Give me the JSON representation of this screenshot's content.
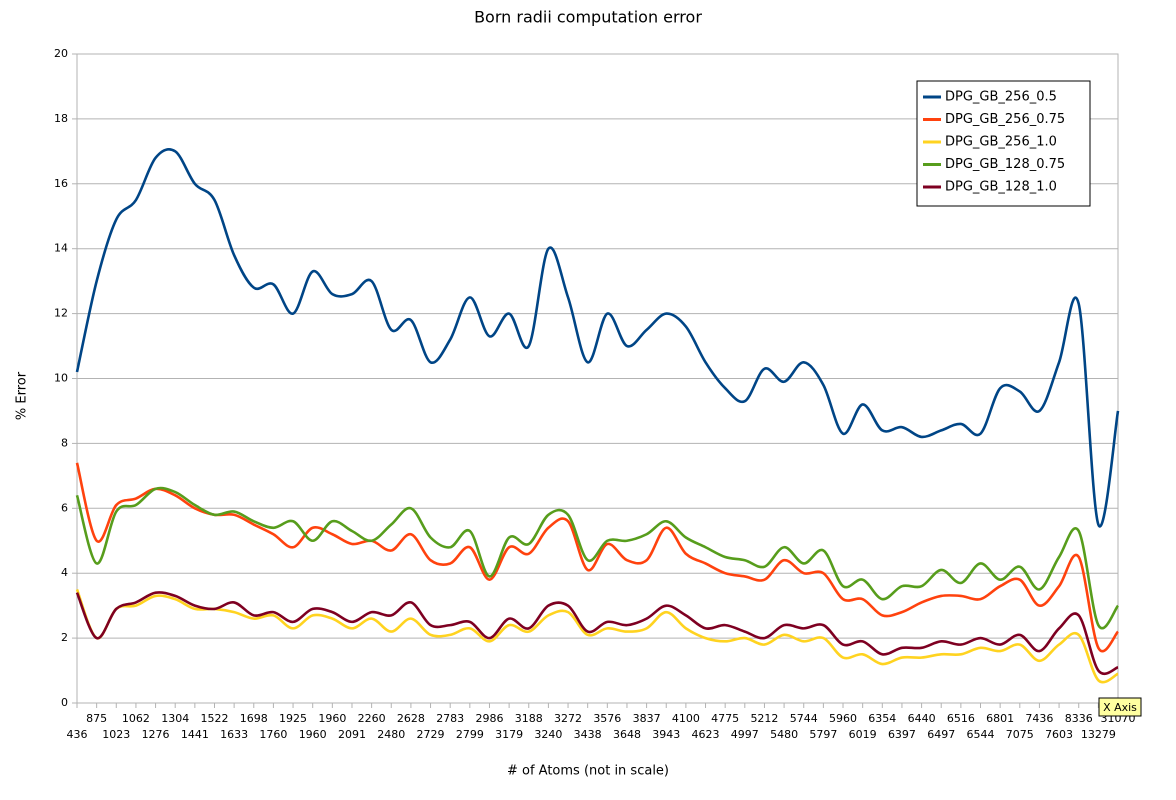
{
  "chart_data": {
    "type": "line",
    "title": "Born radii computation error",
    "x_label": "# of Atoms (not in scale)",
    "y_label": "% Error",
    "tooltip": "X Axis",
    "categories": [
      "436",
      "875",
      "1023",
      "1062",
      "1276",
      "1304",
      "1441",
      "1522",
      "1633",
      "1698",
      "1760",
      "1925",
      "1960",
      "1960",
      "2091",
      "2260",
      "2480",
      "2628",
      "2729",
      "2783",
      "2799",
      "2986",
      "3179",
      "3188",
      "3240",
      "3272",
      "3438",
      "3576",
      "3648",
      "3837",
      "3943",
      "4100",
      "4623",
      "4775",
      "4997",
      "5212",
      "5480",
      "5744",
      "5797",
      "5960",
      "6019",
      "6354",
      "6397",
      "6440",
      "6497",
      "6516",
      "6544",
      "6801",
      "7075",
      "7436",
      "7603",
      "8336",
      "13279",
      "31070"
    ],
    "ylim": [
      0,
      20
    ],
    "yticks": [
      0,
      2,
      4,
      6,
      8,
      10,
      12,
      14,
      16,
      18,
      20
    ],
    "grid": true,
    "smooth": true,
    "legend": "upper right",
    "series": [
      {
        "name": "DPG_GB_256_0.5",
        "color": "#004586",
        "values": [
          10.2,
          13.0,
          14.9,
          15.5,
          16.8,
          17.0,
          16.0,
          15.5,
          13.8,
          12.8,
          12.9,
          12.0,
          13.3,
          12.6,
          12.6,
          13.0,
          11.5,
          11.8,
          10.5,
          11.2,
          12.5,
          11.3,
          12.0,
          11.0,
          14.0,
          12.5,
          10.5,
          12.0,
          11.0,
          11.5,
          12.0,
          11.6,
          10.5,
          9.7,
          9.3,
          10.3,
          9.9,
          10.5,
          9.8,
          8.3,
          9.2,
          8.4,
          8.5,
          8.2,
          8.4,
          8.6,
          8.3,
          9.7,
          9.6,
          9.0,
          10.5,
          12.3,
          5.5,
          9.0
        ]
      },
      {
        "name": "DPG_GB_256_0.75",
        "color": "#ff420e",
        "values": [
          7.4,
          5.0,
          6.1,
          6.3,
          6.6,
          6.4,
          6.0,
          5.8,
          5.8,
          5.5,
          5.2,
          4.8,
          5.4,
          5.2,
          4.9,
          5.0,
          4.7,
          5.2,
          4.4,
          4.3,
          4.8,
          3.8,
          4.8,
          4.6,
          5.4,
          5.6,
          4.1,
          4.9,
          4.4,
          4.4,
          5.4,
          4.6,
          4.3,
          4.0,
          3.9,
          3.8,
          4.4,
          4.0,
          4.0,
          3.2,
          3.2,
          2.7,
          2.8,
          3.1,
          3.3,
          3.3,
          3.2,
          3.6,
          3.8,
          3.0,
          3.6,
          4.5,
          1.7,
          2.2
        ]
      },
      {
        "name": "DPG_GB_256_1.0",
        "color": "#ffd320",
        "values": [
          3.5,
          2.0,
          2.9,
          3.0,
          3.3,
          3.2,
          2.9,
          2.9,
          2.8,
          2.6,
          2.7,
          2.3,
          2.7,
          2.6,
          2.3,
          2.6,
          2.2,
          2.6,
          2.1,
          2.1,
          2.3,
          1.9,
          2.4,
          2.2,
          2.7,
          2.8,
          2.1,
          2.3,
          2.2,
          2.3,
          2.8,
          2.3,
          2.0,
          1.9,
          2.0,
          1.8,
          2.1,
          1.9,
          2.0,
          1.4,
          1.5,
          1.2,
          1.4,
          1.4,
          1.5,
          1.5,
          1.7,
          1.6,
          1.8,
          1.3,
          1.8,
          2.1,
          0.7,
          0.9
        ]
      },
      {
        "name": "DPG_GB_128_0.75",
        "color": "#579d1c",
        "values": [
          6.4,
          4.3,
          5.9,
          6.1,
          6.6,
          6.5,
          6.1,
          5.8,
          5.9,
          5.6,
          5.4,
          5.6,
          5.0,
          5.6,
          5.3,
          5.0,
          5.5,
          6.0,
          5.1,
          4.8,
          5.3,
          3.9,
          5.1,
          4.9,
          5.8,
          5.8,
          4.4,
          5.0,
          5.0,
          5.2,
          5.6,
          5.1,
          4.8,
          4.5,
          4.4,
          4.2,
          4.8,
          4.3,
          4.7,
          3.6,
          3.8,
          3.2,
          3.6,
          3.6,
          4.1,
          3.7,
          4.3,
          3.8,
          4.2,
          3.5,
          4.5,
          5.3,
          2.4,
          3.0
        ]
      },
      {
        "name": "DPG_GB_128_1.0",
        "color": "#7e0021",
        "values": [
          3.4,
          2.0,
          2.9,
          3.1,
          3.4,
          3.3,
          3.0,
          2.9,
          3.1,
          2.7,
          2.8,
          2.5,
          2.9,
          2.8,
          2.5,
          2.8,
          2.7,
          3.1,
          2.4,
          2.4,
          2.5,
          2.0,
          2.6,
          2.3,
          3.0,
          3.0,
          2.2,
          2.5,
          2.4,
          2.6,
          3.0,
          2.7,
          2.3,
          2.4,
          2.2,
          2.0,
          2.4,
          2.3,
          2.4,
          1.8,
          1.9,
          1.5,
          1.7,
          1.7,
          1.9,
          1.8,
          2.0,
          1.8,
          2.1,
          1.6,
          2.3,
          2.7,
          1.0,
          1.1
        ]
      }
    ]
  }
}
